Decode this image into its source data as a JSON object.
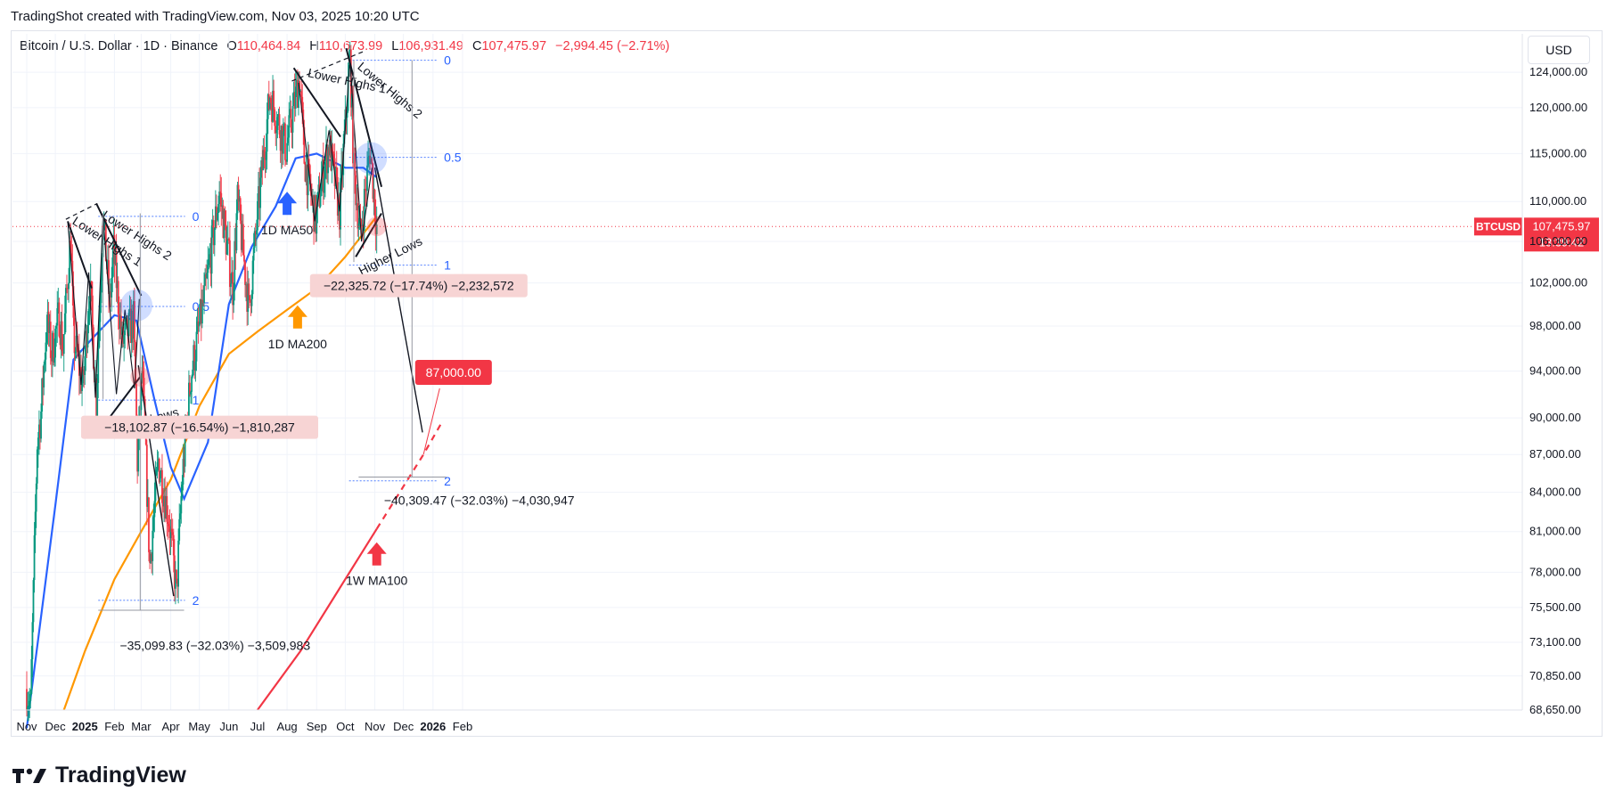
{
  "header": {
    "created": "TradingShot created with TradingView.com, Nov 03, 2025 10:20 UTC"
  },
  "symbol": {
    "name": "Bitcoin / U.S. Dollar · 1D · Binance",
    "o_label": "O",
    "o": "110,464.84",
    "h_label": "H",
    "h": "110,673.99",
    "l_label": "L",
    "l": "106,931.49",
    "c_label": "C",
    "c": "107,475.97",
    "change": "−2,994.45 (−2.71%)"
  },
  "currency_button": "USD",
  "price_tag": {
    "symbol": "BTCUSD",
    "price": "107,475.97",
    "countdown": "13:39:42"
  },
  "brand": "TradingView",
  "colors": {
    "up": "#089981",
    "down": "#f23645",
    "ma50": "#2962ff",
    "ma200": "#ff9800",
    "ma100w": "#f23645",
    "fib": "#2962ff",
    "measure_bg": "#f7d4d4"
  },
  "chart_data": {
    "type": "candlestick",
    "ylim": [
      68650,
      128500
    ],
    "y_scale": "log",
    "y_ticks": [
      "124,000.00",
      "120,000.00",
      "115,000.00",
      "110,000.00",
      "106,000.00",
      "102,000.00",
      "98,000.00",
      "94,000.00",
      "90,000.00",
      "87,000.00",
      "84,000.00",
      "81,000.00",
      "78,000.00",
      "75,500.00",
      "73,100.00",
      "70,850.00",
      "68,650.00"
    ],
    "x_ticks": [
      "Nov",
      "Dec",
      "2025",
      "Feb",
      "Mar",
      "Apr",
      "May",
      "Jun",
      "Jul",
      "Aug",
      "Sep",
      "Oct",
      "Nov",
      "Dec",
      "2026",
      "Feb"
    ],
    "price_path": [
      [
        "2024-11-01",
        70000
      ],
      [
        "2024-11-05",
        68800
      ],
      [
        "2024-11-08",
        76500
      ],
      [
        "2024-11-12",
        88000
      ],
      [
        "2024-11-16",
        90500
      ],
      [
        "2024-11-22",
        98500
      ],
      [
        "2024-11-27",
        95500
      ],
      [
        "2024-12-05",
        99000
      ],
      [
        "2024-12-09",
        96000
      ],
      [
        "2024-12-17",
        106500
      ],
      [
        "2024-12-20",
        97000
      ],
      [
        "2024-12-30",
        92500
      ],
      [
        "2025-01-06",
        102000
      ],
      [
        "2025-01-13",
        91500
      ],
      [
        "2025-01-20",
        108500
      ],
      [
        "2025-01-27",
        100000
      ],
      [
        "2025-01-31",
        105000
      ],
      [
        "2025-02-09",
        96500
      ],
      [
        "2025-02-21",
        98500
      ],
      [
        "2025-02-25",
        86500
      ],
      [
        "2025-03-02",
        94000
      ],
      [
        "2025-03-10",
        78500
      ],
      [
        "2025-03-19",
        86500
      ],
      [
        "2025-03-30",
        82000
      ],
      [
        "2025-04-07",
        76500
      ],
      [
        "2025-04-13",
        85000
      ],
      [
        "2025-04-22",
        93500
      ],
      [
        "2025-05-08",
        101500
      ],
      [
        "2025-05-22",
        111000
      ],
      [
        "2025-06-05",
        101500
      ],
      [
        "2025-06-10",
        110000
      ],
      [
        "2025-06-22",
        99500
      ],
      [
        "2025-06-30",
        107500
      ],
      [
        "2025-07-14",
        121500
      ],
      [
        "2025-07-31",
        115500
      ],
      [
        "2025-08-14",
        123500
      ],
      [
        "2025-08-19",
        114500
      ],
      [
        "2025-08-31",
        108000
      ],
      [
        "2025-09-05",
        111500
      ],
      [
        "2025-09-14",
        116000
      ],
      [
        "2025-09-25",
        109000
      ],
      [
        "2025-10-06",
        125500
      ],
      [
        "2025-10-10",
        113000
      ],
      [
        "2025-10-17",
        106500
      ],
      [
        "2025-10-27",
        115500
      ],
      [
        "2025-11-03",
        107476
      ]
    ],
    "ma50_1d": [
      [
        "2024-11-01",
        67500
      ],
      [
        "2024-12-01",
        83000
      ],
      [
        "2024-12-20",
        95000
      ],
      [
        "2025-01-10",
        97000
      ],
      [
        "2025-02-01",
        99000
      ],
      [
        "2025-02-24",
        98500
      ],
      [
        "2025-03-15",
        91500
      ],
      [
        "2025-04-01",
        86000
      ],
      [
        "2025-04-15",
        83500
      ],
      [
        "2025-05-10",
        88000
      ],
      [
        "2025-06-01",
        100000
      ],
      [
        "2025-06-25",
        105500
      ],
      [
        "2025-07-20",
        109500
      ],
      [
        "2025-08-10",
        114500
      ],
      [
        "2025-09-01",
        115000
      ],
      [
        "2025-10-01",
        113500
      ],
      [
        "2025-10-20",
        113500
      ],
      [
        "2025-11-03",
        112500
      ]
    ],
    "ma200_1d": [
      [
        "2024-12-10",
        68650
      ],
      [
        "2025-01-01",
        72500
      ],
      [
        "2025-02-01",
        77500
      ],
      [
        "2025-03-01",
        81000
      ],
      [
        "2025-04-01",
        85000
      ],
      [
        "2025-05-01",
        91000
      ],
      [
        "2025-06-01",
        95500
      ],
      [
        "2025-07-01",
        97500
      ],
      [
        "2025-08-01",
        99500
      ],
      [
        "2025-09-01",
        101500
      ],
      [
        "2025-10-01",
        104500
      ],
      [
        "2025-11-03",
        108500
      ]
    ],
    "ma100_1w": [
      [
        "2025-07-01",
        68650
      ],
      [
        "2025-08-15",
        72500
      ],
      [
        "2025-10-01",
        77500
      ],
      [
        "2025-11-03",
        81200
      ]
    ],
    "ma100_1w_projection": [
      [
        "2025-11-03",
        81200
      ],
      [
        "2025-12-22",
        87000
      ],
      [
        "2026-01-10",
        89600
      ]
    ],
    "projection_target": "87,000.00",
    "annotations": {
      "lower_highs_1a": "Lower Highs 1",
      "lower_highs_2a": "Lower Highs 2",
      "higher_lows_a": "Higher Lows",
      "lower_highs_1b": "Lower Highs 1",
      "lower_highs_2b": "Lower Highs 2",
      "higher_lows_b": "Higher Lows",
      "ma50_label": "1D MA50",
      "ma200_label": "1D MA200",
      "ma100w_label": "1W MA100"
    },
    "fib_1": {
      "levels": [
        "0",
        "0.5",
        "1",
        "2"
      ],
      "values": [
        108500,
        99800,
        91500,
        76000
      ]
    },
    "fib_2": {
      "levels": [
        "0",
        "0.5",
        "1",
        "2"
      ],
      "values": [
        125400,
        114600,
        103700,
        84900
      ]
    },
    "measures": {
      "m1": "−18,102.87 (−16.54%) −1,810,287",
      "m2": "−35,099.83 (−32.03%) −3,509,983",
      "m3": "−22,325.72 (−17.74%) −2,232,572",
      "m4": "−40,309.47 (−32.03%) −4,030,947"
    }
  }
}
